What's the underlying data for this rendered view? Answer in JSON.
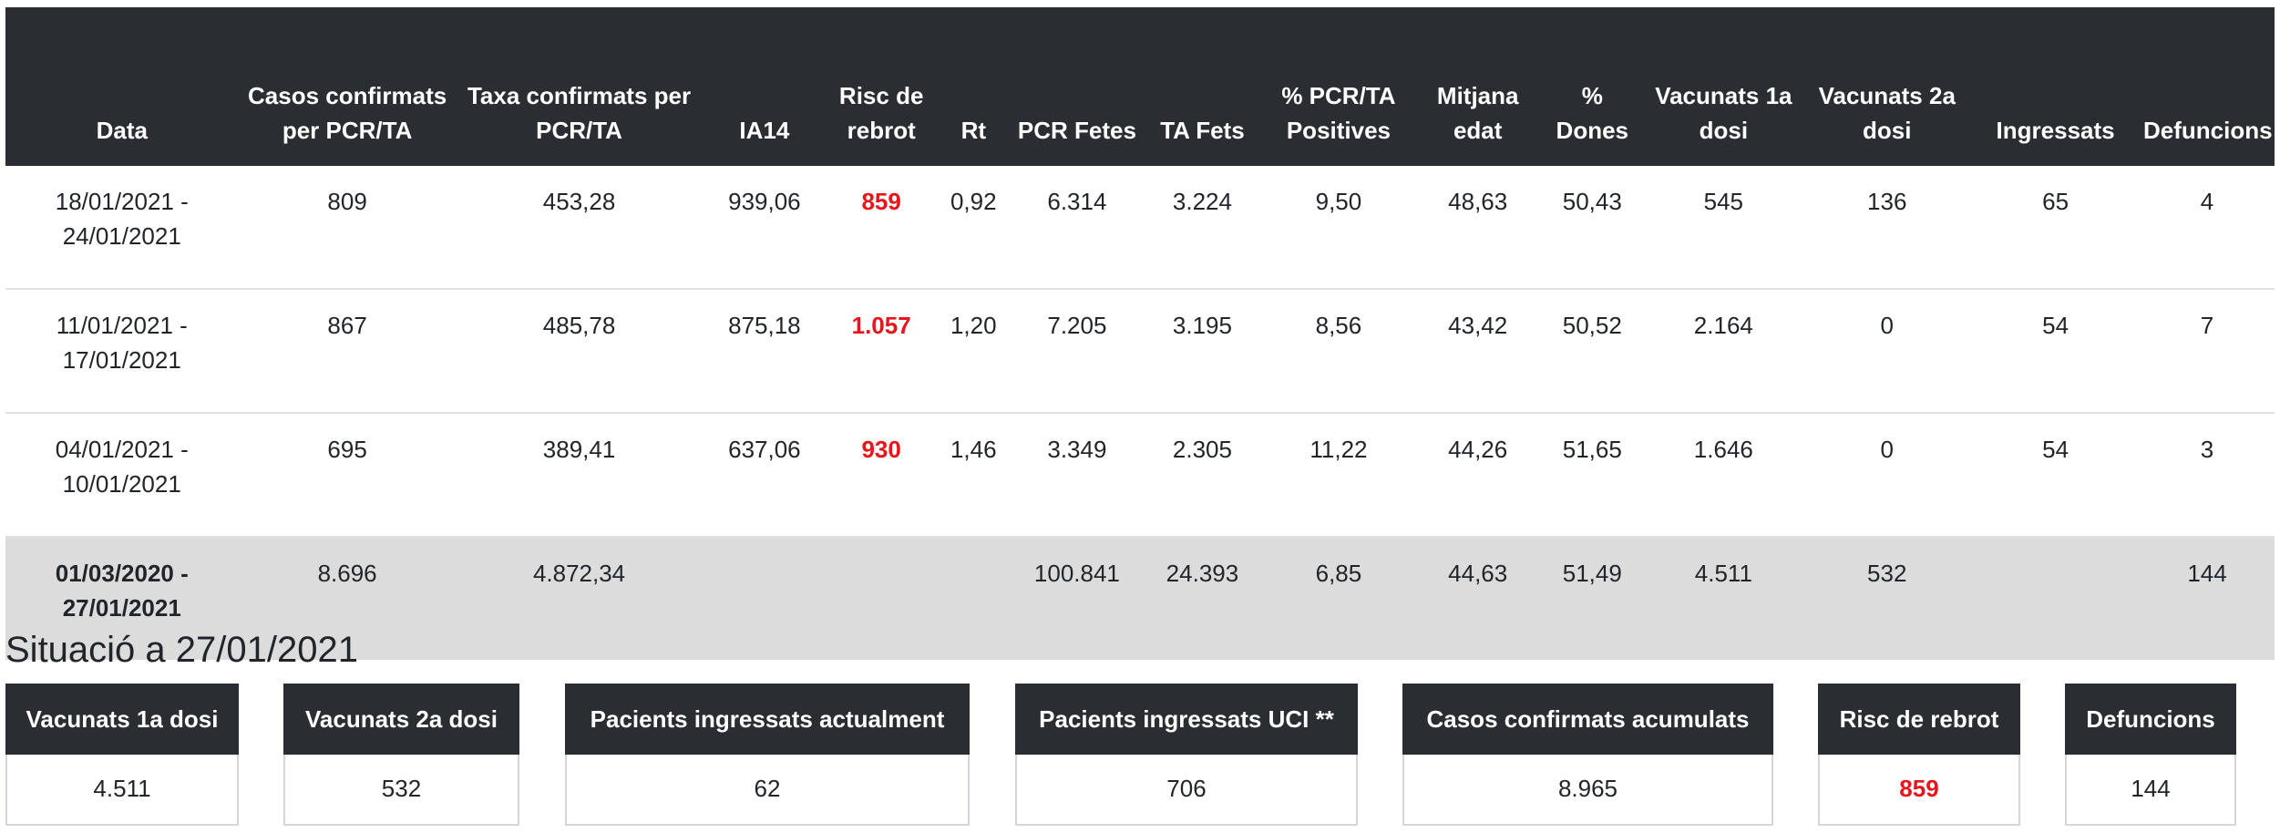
{
  "table": {
    "headers": [
      "Data",
      "Casos confirmats per PCR/TA",
      "Taxa confirmats per PCR/TA",
      "IA14",
      "Risc de rebrot",
      "Rt",
      "PCR Fetes",
      "TA Fets",
      "% PCR/TA Positives",
      "Mitjana edat",
      "% Dones",
      "Vacunats 1a dosi",
      "Vacunats 2a dosi",
      "Ingressats",
      "Defuncions"
    ],
    "rows": [
      [
        "18/01/2021 - 24/01/2021",
        "809",
        "453,28",
        "939,06",
        "859",
        "0,92",
        "6.314",
        "3.224",
        "9,50",
        "48,63",
        "50,43",
        "545",
        "136",
        "65",
        "4"
      ],
      [
        "11/01/2021 - 17/01/2021",
        "867",
        "485,78",
        "875,18",
        "1.057",
        "1,20",
        "7.205",
        "3.195",
        "8,56",
        "43,42",
        "50,52",
        "2.164",
        "0",
        "54",
        "7"
      ],
      [
        "04/01/2021 - 10/01/2021",
        "695",
        "389,41",
        "637,06",
        "930",
        "1,46",
        "3.349",
        "2.305",
        "11,22",
        "44,26",
        "51,65",
        "1.646",
        "0",
        "54",
        "3"
      ]
    ],
    "total": [
      "01/03/2020 - 27/01/2021",
      "8.696",
      "4.872,34",
      "",
      "",
      "",
      "100.841",
      "24.393",
      "6,85",
      "44,63",
      "51,49",
      "4.511",
      "532",
      "",
      "144"
    ]
  },
  "situation": {
    "title": "Situació a 27/01/2021",
    "cards": [
      {
        "label": "Vacunats 1a dosi",
        "value": "4.511"
      },
      {
        "label": "Vacunats 2a dosi",
        "value": "532"
      },
      {
        "label": "Pacients ingressats actualment",
        "value": "62"
      },
      {
        "label": "Pacients ingressats UCI **",
        "value": "706"
      },
      {
        "label": "Casos confirmats acumulats",
        "value": "8.965"
      },
      {
        "label": "Risc de rebrot",
        "value": "859"
      },
      {
        "label": "Defuncions",
        "value": "144"
      }
    ]
  },
  "colors": {
    "header_bg": "#2a2d32",
    "risk_red": "#e8151b",
    "total_row_bg": "#dcdcdc"
  }
}
